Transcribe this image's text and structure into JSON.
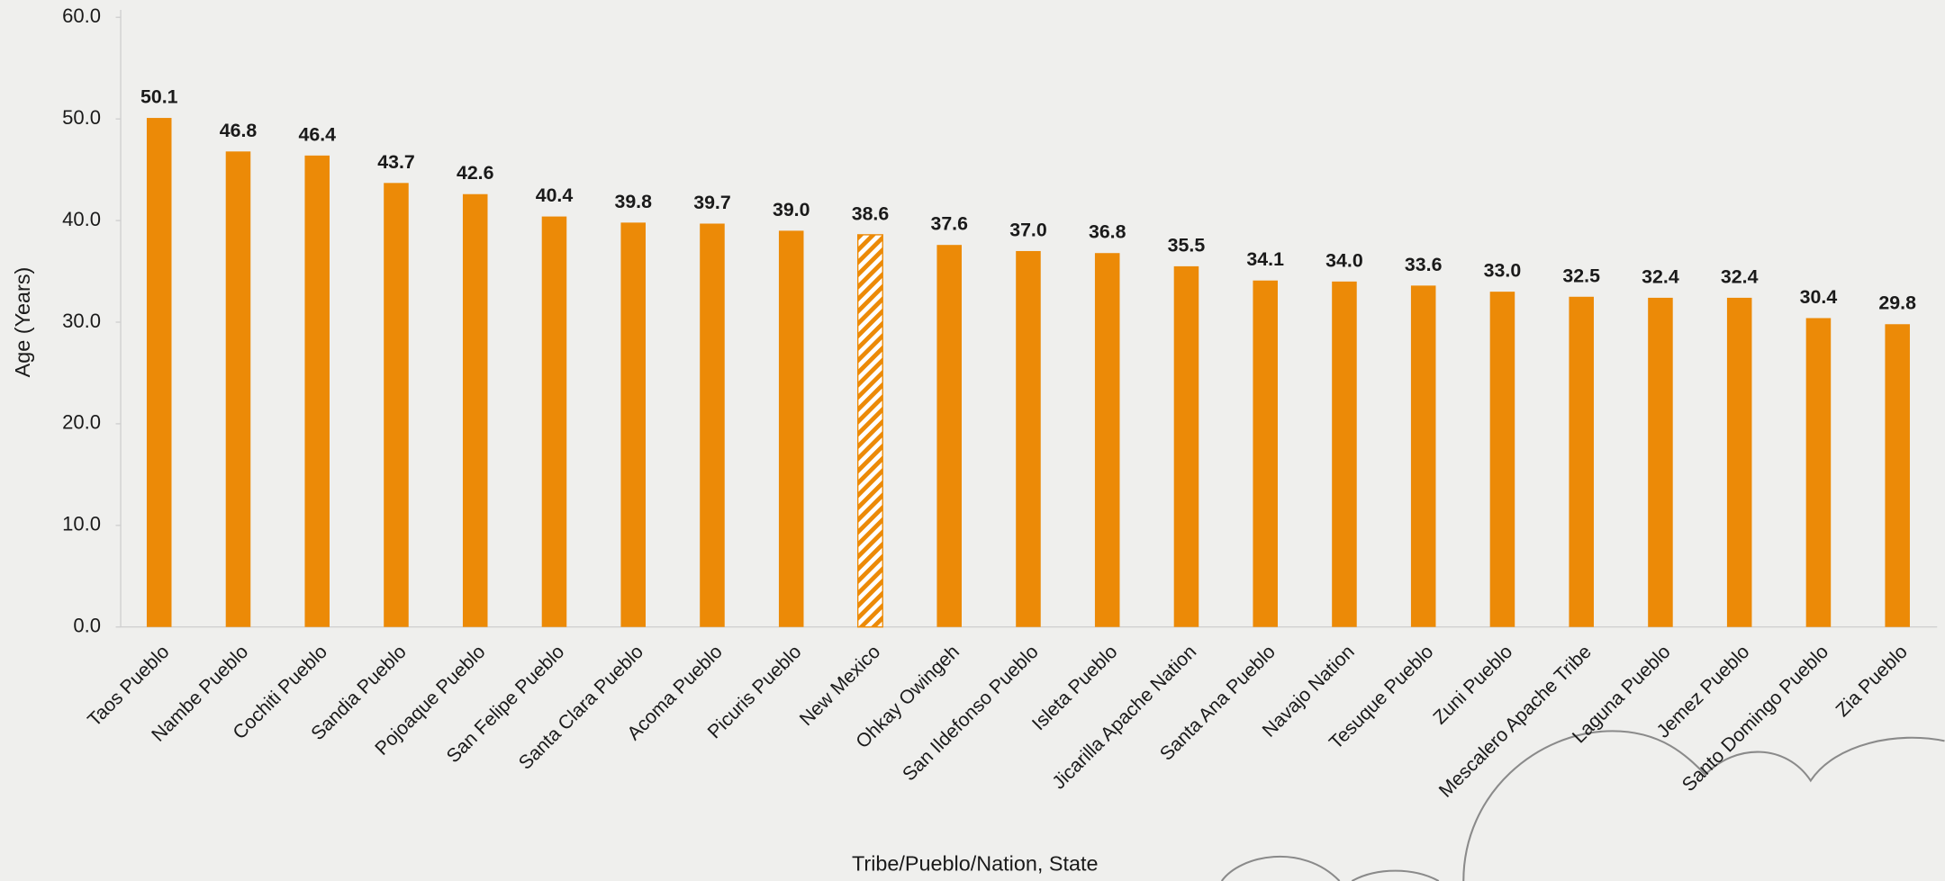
{
  "chart_data": {
    "type": "bar",
    "x_label": "Tribe/Pueblo/Nation, State",
    "y_label": "Age (Years)",
    "categories": [
      "Taos Pueblo",
      "Nambe Pueblo",
      "Cochiti Pueblo",
      "Sandia Pueblo",
      "Pojoaque Pueblo",
      "San Felipe Pueblo",
      "Santa Clara Pueblo",
      "Acoma Pueblo",
      "Picuris Pueblo",
      "New Mexico",
      "Ohkay Owingeh",
      "San Ildefonso Pueblo",
      "Isleta Pueblo",
      "Jicarilla Apache Nation",
      "Santa Ana Pueblo",
      "Navajo Nation",
      "Tesuque Pueblo",
      "Zuni Pueblo",
      "Mescalero Apache Tribe",
      "Laguna Pueblo",
      "Jemez Pueblo",
      "Santo Domingo Pueblo",
      "Zia Pueblo"
    ],
    "values": [
      50.1,
      46.8,
      46.4,
      43.7,
      42.6,
      40.4,
      39.8,
      39.7,
      39.0,
      38.6,
      37.6,
      37.0,
      36.8,
      35.5,
      34.1,
      34.0,
      33.6,
      33.0,
      32.5,
      32.4,
      32.4,
      30.4,
      29.8
    ],
    "value_labels": [
      "50.1",
      "46.8",
      "46.4",
      "43.7",
      "42.6",
      "40.4",
      "39.8",
      "39.7",
      "39.0",
      "38.6",
      "37.6",
      "37.0",
      "36.8",
      "35.5",
      "34.1",
      "34.0",
      "33.6",
      "33.0",
      "32.5",
      "32.4",
      "32.4",
      "30.4",
      "29.8"
    ],
    "color": "#ec8a07",
    "hatch_index": 9,
    "ylim": [
      0,
      60
    ],
    "yticks": [
      {
        "value": 0,
        "label": "0.0"
      },
      {
        "value": 10,
        "label": "10.0"
      },
      {
        "value": 20,
        "label": "20.0"
      },
      {
        "value": 30,
        "label": "30.0"
      },
      {
        "value": 40,
        "label": "40.0"
      },
      {
        "value": 50,
        "label": "50.0"
      },
      {
        "value": 60,
        "label": "60.0"
      }
    ],
    "grid": false
  }
}
